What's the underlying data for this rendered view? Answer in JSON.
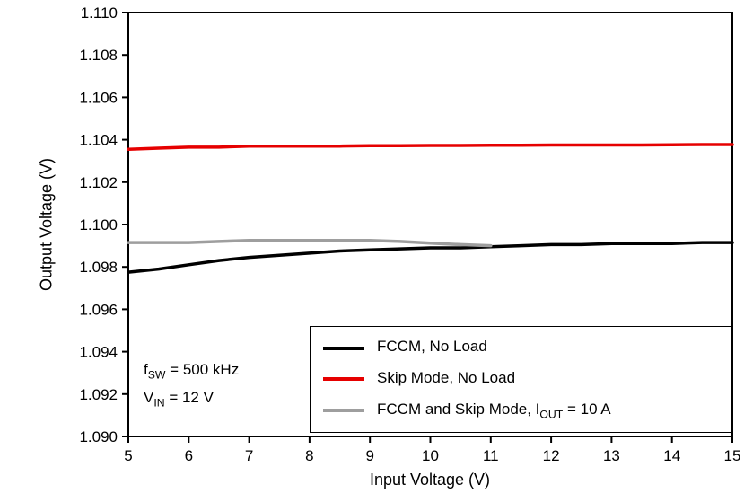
{
  "chart_data": {
    "type": "line",
    "title": "",
    "xlabel": "Input Voltage (V)",
    "ylabel": "Output Voltage (V)",
    "xlim": [
      5,
      15
    ],
    "ylim": [
      1.09,
      1.11
    ],
    "x_ticks": [
      "5",
      "6",
      "7",
      "8",
      "9",
      "10",
      "11",
      "12",
      "13",
      "14",
      "15"
    ],
    "y_ticks": [
      "1.090",
      "1.092",
      "1.094",
      "1.096",
      "1.098",
      "1.100",
      "1.102",
      "1.104",
      "1.106",
      "1.108",
      "1.110"
    ],
    "grid": false,
    "legend_position": "lower right",
    "series": [
      {
        "name": "FCCM, No Load",
        "color": "#000000",
        "x": [
          5,
          5.5,
          6,
          6.5,
          7,
          7.5,
          8,
          8.5,
          9,
          9.5,
          10,
          10.5,
          11,
          11.5,
          12,
          12.5,
          13,
          13.5,
          14,
          14.5,
          15
        ],
        "y": [
          1.09775,
          1.0979,
          1.0981,
          1.0983,
          1.09845,
          1.09855,
          1.09865,
          1.09875,
          1.0988,
          1.09885,
          1.0989,
          1.0989,
          1.09895,
          1.099,
          1.09905,
          1.09905,
          1.0991,
          1.0991,
          1.0991,
          1.09915,
          1.09915
        ]
      },
      {
        "name": "Skip Mode, No Load",
        "color": "#e60000",
        "x": [
          5,
          5.5,
          6,
          6.5,
          7,
          7.5,
          8,
          8.5,
          9,
          9.5,
          10,
          10.5,
          11,
          11.5,
          12,
          12.5,
          13,
          13.5,
          14,
          14.5,
          15
        ],
        "y": [
          1.10355,
          1.1036,
          1.10365,
          1.10365,
          1.1037,
          1.1037,
          1.1037,
          1.1037,
          1.10372,
          1.10372,
          1.10373,
          1.10373,
          1.10374,
          1.10374,
          1.10375,
          1.10375,
          1.10375,
          1.10375,
          1.10376,
          1.10377,
          1.10377
        ]
      },
      {
        "name": "FCCM and Skip Mode, IOUT = 10 A",
        "color": "#9e9e9e",
        "x": [
          5,
          5.5,
          6,
          6.5,
          7,
          7.5,
          8,
          8.5,
          9,
          9.5,
          10,
          10.5,
          11
        ],
        "y": [
          1.09915,
          1.09915,
          1.09915,
          1.0992,
          1.09925,
          1.09925,
          1.09925,
          1.09925,
          1.09925,
          1.0992,
          1.09912,
          1.09905,
          1.099
        ]
      }
    ]
  },
  "axes": {
    "xlabel": "Input Voltage (V)",
    "ylabel": "Output Voltage (V)"
  },
  "legend": {
    "items": [
      {
        "pre": "FCCM, No Load",
        "sub": "",
        "post": ""
      },
      {
        "pre": "Skip Mode, No Load",
        "sub": "",
        "post": ""
      },
      {
        "pre": "FCCM and Skip Mode, I",
        "sub": "OUT",
        "post": " = 10 A"
      }
    ]
  },
  "annotations": {
    "line1": {
      "pre": "f",
      "sub": "SW",
      "post": " = 500 kHz"
    },
    "line2": {
      "pre": "V",
      "sub": "IN",
      "post": " = 12 V"
    }
  }
}
